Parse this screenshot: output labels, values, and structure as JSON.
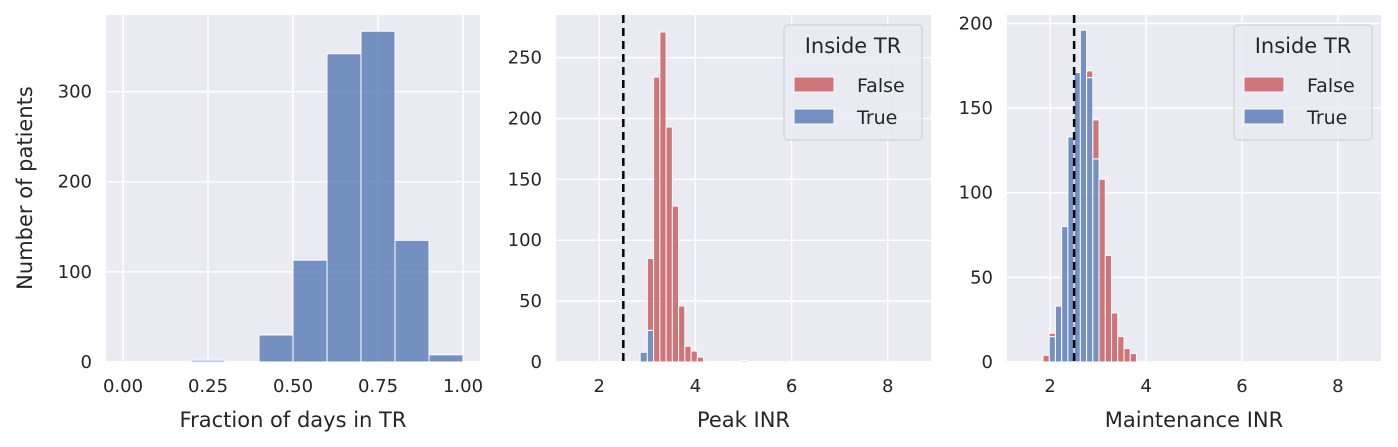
{
  "colors": {
    "background": "#EAEAF2",
    "grid": "#FFFFFF",
    "true_series": "#4C72B0",
    "false_series": "#C44E52",
    "reference_line": "#000000"
  },
  "chart_data": [
    {
      "type": "histogram",
      "xlabel": "Fraction of days in TR",
      "ylabel": "Number of patients",
      "xlim": [
        -0.05,
        1.05
      ],
      "ylim": [
        0,
        385
      ],
      "xticks": [
        0.0,
        0.25,
        0.5,
        0.75,
        1.0
      ],
      "xtick_labels": [
        "0.00",
        "0.25",
        "0.50",
        "0.75",
        "1.00"
      ],
      "yticks": [
        0,
        100,
        200,
        300
      ],
      "grid": true,
      "series": [
        {
          "color_key": "true_series",
          "bins": [
            [
              0.2,
              0.3,
              2
            ],
            [
              0.3,
              0.4,
              0
            ],
            [
              0.4,
              0.5,
              30
            ],
            [
              0.5,
              0.6,
              113
            ],
            [
              0.6,
              0.7,
              342
            ],
            [
              0.7,
              0.8,
              367
            ],
            [
              0.8,
              0.9,
              135
            ],
            [
              0.9,
              1.0,
              8
            ]
          ]
        }
      ]
    },
    {
      "type": "histogram",
      "stacked": true,
      "xlabel": "Peak INR",
      "ylabel": "",
      "xlim": [
        1.1,
        8.9
      ],
      "ylim": [
        0,
        285
      ],
      "xticks": [
        2,
        4,
        6,
        8
      ],
      "xtick_labels": [
        "2",
        "4",
        "6",
        "8"
      ],
      "yticks": [
        0,
        50,
        100,
        150,
        200,
        250
      ],
      "reference_line_x": 2.5,
      "grid": true,
      "legend": {
        "title": "Inside TR",
        "location": "upper right",
        "entries": [
          "False",
          "True"
        ]
      },
      "series": [
        {
          "name": "True",
          "color_key": "true_series",
          "bins": [
            [
              2.85,
              3.0,
              8
            ],
            [
              3.0,
              3.13,
              26
            ],
            [
              3.13,
              3.26,
              0
            ]
          ]
        },
        {
          "name": "False",
          "color_key": "false_series",
          "bins": [
            [
              2.85,
              3.0,
              0
            ],
            [
              3.0,
              3.13,
              59
            ],
            [
              3.13,
              3.26,
              234
            ],
            [
              3.26,
              3.39,
              271
            ],
            [
              3.39,
              3.52,
              193
            ],
            [
              3.52,
              3.65,
              128
            ],
            [
              3.65,
              3.78,
              46
            ],
            [
              3.78,
              3.91,
              13
            ],
            [
              3.91,
              4.04,
              9
            ],
            [
              4.04,
              4.17,
              4
            ],
            [
              4.95,
              5.08,
              1
            ]
          ]
        }
      ]
    },
    {
      "type": "histogram",
      "stacked": true,
      "xlabel": "Maintenance INR",
      "ylabel": "",
      "xlim": [
        1.1,
        8.9
      ],
      "ylim": [
        0,
        205
      ],
      "xticks": [
        2,
        4,
        6,
        8
      ],
      "xtick_labels": [
        "2",
        "4",
        "6",
        "8"
      ],
      "yticks": [
        0,
        50,
        100,
        150,
        200
      ],
      "reference_line_x": 2.5,
      "grid": true,
      "legend": {
        "title": "Inside TR",
        "location": "upper right",
        "entries": [
          "False",
          "True"
        ]
      },
      "series": [
        {
          "name": "True",
          "color_key": "true_series",
          "bins": [
            [
              1.85,
              1.98,
              0
            ],
            [
              1.98,
              2.11,
              15
            ],
            [
              2.11,
              2.24,
              33
            ],
            [
              2.24,
              2.37,
              80
            ],
            [
              2.37,
              2.5,
              133
            ],
            [
              2.5,
              2.63,
              171
            ],
            [
              2.63,
              2.76,
              196
            ],
            [
              2.76,
              2.89,
              168
            ],
            [
              2.89,
              3.02,
              120
            ],
            [
              3.02,
              3.15,
              0
            ]
          ]
        },
        {
          "name": "False",
          "color_key": "false_series",
          "bins": [
            [
              1.85,
              1.98,
              4
            ],
            [
              1.98,
              2.11,
              2
            ],
            [
              2.11,
              2.24,
              0
            ],
            [
              2.24,
              2.37,
              0
            ],
            [
              2.37,
              2.5,
              0
            ],
            [
              2.5,
              2.63,
              0
            ],
            [
              2.63,
              2.76,
              0
            ],
            [
              2.76,
              2.89,
              4
            ],
            [
              2.89,
              3.02,
              23
            ],
            [
              3.02,
              3.15,
              108
            ],
            [
              3.15,
              3.28,
              63
            ],
            [
              3.28,
              3.41,
              29
            ],
            [
              3.41,
              3.54,
              15
            ],
            [
              3.54,
              3.67,
              8
            ],
            [
              3.67,
              3.8,
              5
            ]
          ]
        }
      ]
    }
  ]
}
